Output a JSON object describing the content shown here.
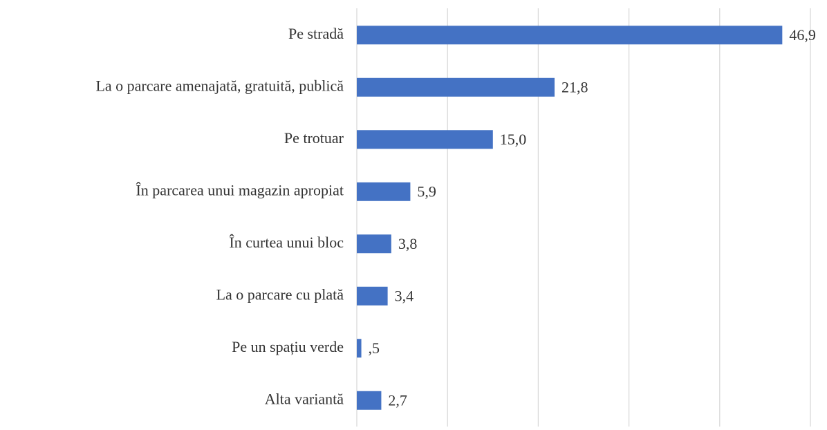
{
  "chart_data": {
    "type": "barh",
    "categories": [
      "Pe stradă",
      "La o parcare amenajată, gratuită, publică",
      "Pe trotuar",
      "În parcarea unui magazin apropiat",
      "În curtea unui bloc",
      "La o parcare cu plată",
      "Pe un spațiu verde",
      "Alta variantă"
    ],
    "values": [
      46.9,
      21.8,
      15.0,
      5.9,
      3.8,
      3.4,
      0.5,
      2.7
    ],
    "value_labels": [
      "46,9",
      "21,8",
      "15,0",
      "5,9",
      "3,8",
      "3,4",
      ",5",
      "2,7"
    ],
    "color": "#4472c4",
    "xlim": [
      0,
      50
    ],
    "xticks": [
      0,
      10,
      20,
      30,
      40,
      50
    ],
    "grid": true
  }
}
